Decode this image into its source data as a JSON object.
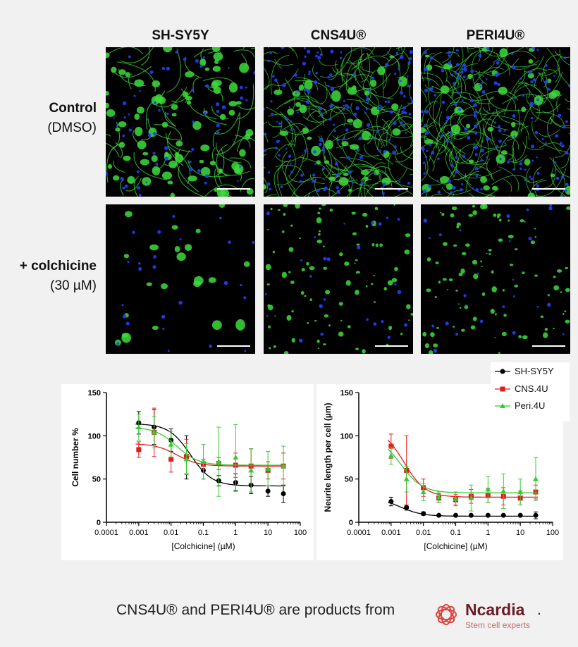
{
  "columns": [
    "SH-SY5Y",
    "CNS4U®",
    "PERI4U®"
  ],
  "rows": [
    {
      "label_bold": "Control",
      "label_sub": "(DMSO)"
    },
    {
      "label_bold": "+ colchicine",
      "label_sub": "(30 µM)"
    }
  ],
  "images": [
    {
      "name": "sh-control",
      "density": 0.9,
      "fibers": "sparse",
      "nuclei": "medium"
    },
    {
      "name": "cns-control",
      "density": 1.0,
      "fibers": "dense",
      "nuclei": "high"
    },
    {
      "name": "peri-control",
      "density": 1.0,
      "fibers": "dense",
      "nuclei": "high"
    },
    {
      "name": "sh-colchicine",
      "density": 0.25,
      "fibers": "none",
      "nuclei": "low"
    },
    {
      "name": "cns-colchicine",
      "density": 0.35,
      "fibers": "debris",
      "nuclei": "low"
    },
    {
      "name": "peri-colchicine",
      "density": 0.35,
      "fibers": "debris",
      "nuclei": "low"
    }
  ],
  "legend": [
    "SH-SY5Y",
    "CNS.4U",
    "Peri.4U"
  ],
  "colors": {
    "sh": "#000000",
    "cns": "#e31a1c",
    "peri": "#33cc33",
    "green": "#3ddc3d",
    "blue": "#2040ff"
  },
  "chart_data": [
    {
      "type": "scatter",
      "xscale": "log",
      "xlabel": "[Colchicine] (µM)",
      "ylabel": "Cell number %",
      "xlim": [
        0.0001,
        100
      ],
      "ylim": [
        0,
        150
      ],
      "xticks": [
        "0.0001",
        "0.001",
        "0.01",
        "0.1",
        "1",
        "10",
        "100"
      ],
      "yticks": [
        "0",
        "50",
        "100",
        "150"
      ],
      "x": [
        0.001,
        0.003,
        0.01,
        0.03,
        0.1,
        0.3,
        1,
        3,
        10,
        30
      ],
      "series": [
        {
          "name": "SH-SY5Y",
          "values": [
            115,
            110,
            95,
            75,
            60,
            48,
            46,
            43,
            36,
            33
          ],
          "errors": [
            13,
            20,
            13,
            25,
            10,
            6,
            10,
            10,
            6,
            10
          ],
          "fit": {
            "top": 114,
            "bottom": 42,
            "ec50": 0.04
          }
        },
        {
          "name": "CNS.4U",
          "values": [
            84,
            104,
            73,
            76,
            67,
            68,
            66,
            65,
            60,
            65
          ],
          "errors": [
            9,
            28,
            15,
            20,
            6,
            7,
            14,
            20,
            10,
            15
          ],
          "fit": {
            "top": 91,
            "bottom": 65,
            "ec50": 0.015
          }
        },
        {
          "name": "Peri.4U",
          "values": [
            110,
            104,
            90,
            73,
            70,
            70,
            75,
            60,
            62,
            65
          ],
          "errors": [
            15,
            18,
            15,
            18,
            20,
            40,
            38,
            25,
            20,
            23
          ],
          "fit": {
            "top": 110,
            "bottom": 66,
            "ec50": 0.015
          }
        }
      ]
    },
    {
      "type": "scatter",
      "xscale": "log",
      "xlabel": "[Colchicine] (µM)",
      "ylabel": "Neurite length per cell (µm)",
      "xlim": [
        0.0001,
        100
      ],
      "ylim": [
        0,
        150
      ],
      "xticks": [
        "0.0001",
        "0.001",
        "0.01",
        "0.1",
        "1",
        "10",
        "100"
      ],
      "yticks": [
        "0",
        "50",
        "100",
        "150"
      ],
      "x": [
        0.001,
        0.003,
        0.01,
        0.03,
        0.1,
        0.3,
        1,
        3,
        10,
        30
      ],
      "series": [
        {
          "name": "SH-SY5Y",
          "values": [
            24,
            17,
            10,
            8,
            8,
            8,
            8,
            8,
            8,
            8
          ],
          "errors": [
            5,
            3,
            2,
            1,
            1,
            1,
            1,
            1,
            1,
            4
          ],
          "fit": {
            "top": 28,
            "bottom": 7,
            "ec50": 0.002
          }
        },
        {
          "name": "CNS.4U",
          "values": [
            88,
            60,
            40,
            28,
            26,
            30,
            31,
            30,
            28,
            35
          ],
          "errors": [
            14,
            40,
            10,
            5,
            6,
            8,
            8,
            10,
            8,
            8
          ],
          "fit": {
            "top": 110,
            "bottom": 29,
            "ec50": 0.0025
          }
        },
        {
          "name": "Peri.4U",
          "values": [
            77,
            50,
            35,
            29,
            27,
            28,
            38,
            36,
            35,
            50
          ],
          "errors": [
            10,
            15,
            10,
            6,
            8,
            15,
            15,
            20,
            15,
            25
          ],
          "fit": {
            "top": 100,
            "bottom": 34,
            "ec50": 0.002
          }
        }
      ]
    }
  ],
  "footer": {
    "text": "CNS4U® and PERI4U® are products  from",
    "brand": "Ncardia",
    "tagline": "Stem cell experts",
    "period": "."
  }
}
